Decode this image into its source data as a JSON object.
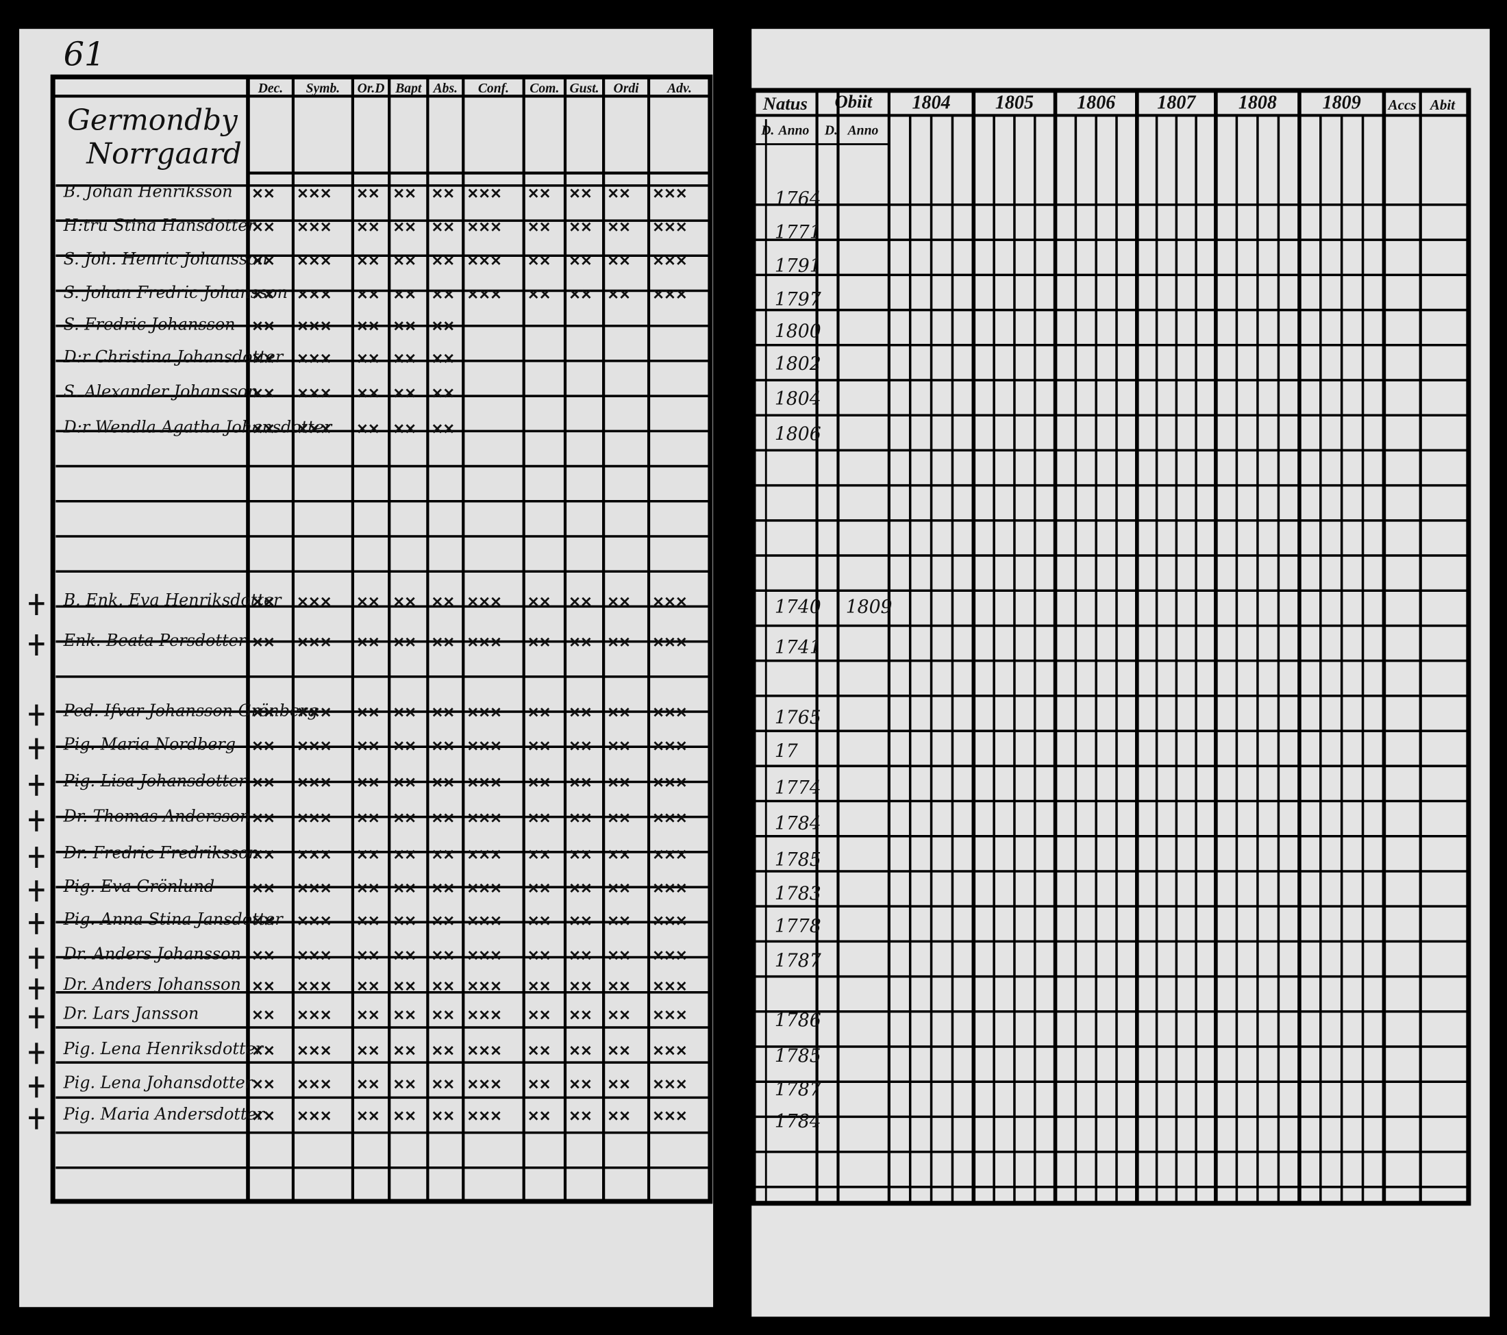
{
  "page_number": "61",
  "heading": [
    "Germondby",
    "Norrgaard"
  ],
  "left_columns": [
    "Dec.",
    "Symb.",
    "Or.D",
    "Bapt",
    "Abs.",
    "Conf.",
    "Com.",
    "Gust.",
    "Ordi",
    "Adv."
  ],
  "right_columns": {
    "natus": "Natus",
    "obiit": "Obiit",
    "years": [
      "1804",
      "1805",
      "1806",
      "1807",
      "1808",
      "1809"
    ],
    "accessit": "Accs",
    "abiit": "Abit",
    "subheaders": [
      "D.",
      "Anno",
      "D.",
      "Anno"
    ]
  },
  "register_rows": [
    {
      "name": "B. Johan Henriksson",
      "natus_anno": "1764"
    },
    {
      "name": "H:tru Stina Hansdotter",
      "natus_anno": "1771"
    },
    {
      "name": "S. Joh. Henric Johansson",
      "natus_anno": "1791"
    },
    {
      "name": "S. Johan Fredric Johansson",
      "natus_anno": "1797"
    },
    {
      "name": "S. Fredric Johansson",
      "natus_anno": "1800"
    },
    {
      "name": "D:r Christina Johansdotter",
      "natus_anno": "1802"
    },
    {
      "name": "S. Alexander Johansson",
      "natus_anno": "1804"
    },
    {
      "name": "D:r Wendla Agatha Johansdotter",
      "natus_anno": "1806"
    },
    {
      "name": "B. Enk. Eva Henriksdotter",
      "natus_anno": "1740",
      "obiit_anno": "1809"
    },
    {
      "name": "Enk. Beata Persdotter",
      "natus_anno": "1741"
    },
    {
      "name": "Ped. Ifvar Johansson Grönberg",
      "natus_anno": "1765"
    },
    {
      "name": "Pig. Maria Nordberg",
      "natus_anno": "17"
    },
    {
      "name": "Pig. Lisa Johansdotter",
      "natus_anno": "1774"
    },
    {
      "name": "Dr. Thomas Andersson",
      "natus_anno": "1784"
    },
    {
      "name": "Dr. Fredric Fredriksson",
      "natus_anno": "1785"
    },
    {
      "name": "Pig. Eva Grönlund",
      "natus_anno": "1783"
    },
    {
      "name": "Pig. Anna Stina Jansdotter",
      "natus_anno": "1778"
    },
    {
      "name": "Dr. Anders Johansson",
      "natus_anno": "1787"
    },
    {
      "name": "Dr. Anders Johansson"
    },
    {
      "name": "Dr. Lars Jansson",
      "natus_anno": "1786"
    },
    {
      "name": "Pig. Lena Henriksdotter",
      "natus_anno": "1785"
    },
    {
      "name": "Pig. Lena Johansdotter",
      "natus_anno": "1787"
    },
    {
      "name": "Pig. Maria Andersdotter",
      "natus_anno": "1784"
    }
  ]
}
